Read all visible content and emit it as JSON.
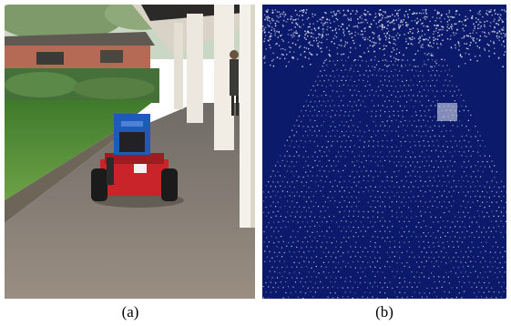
{
  "figure": {
    "panels": [
      {
        "caption": "(a)",
        "content": "photo-robot-corridor"
      },
      {
        "caption": "(b)",
        "content": "point-cloud-map"
      }
    ],
    "colors": {
      "cloud_background": "#0b1a6a",
      "cloud_points": "#e8ecf5",
      "grass": "#5c8f3a",
      "pavement": "#8f8479",
      "robot_body": "#c8242a",
      "robot_top": "#1e5bb8",
      "building_brick": "#b46a55",
      "column": "#ece8df"
    }
  }
}
